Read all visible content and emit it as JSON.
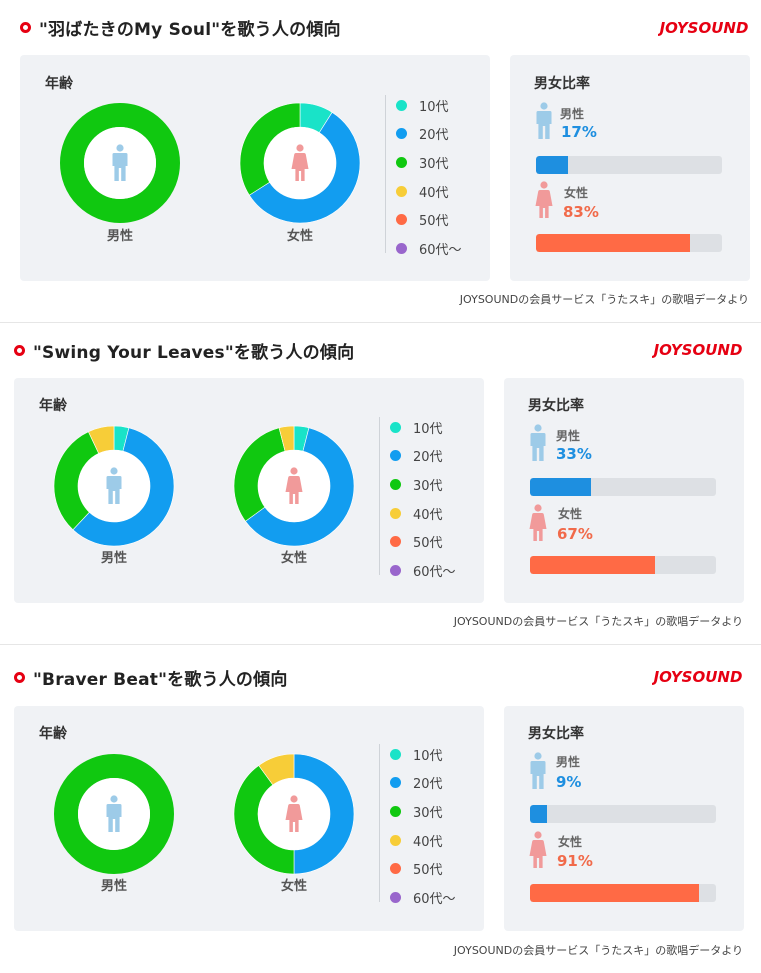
{
  "brand": "JOYSOUND",
  "footer_note": "JOYSOUNDの会員サービス「うたスキ」の歌唱データより",
  "labels": {
    "age": "年齢",
    "ratio": "男女比率",
    "male": "男性",
    "female": "女性"
  },
  "colors": {
    "10s": "#19e3c8",
    "20s": "#129df0",
    "30s": "#10c810",
    "40s": "#f7cd38",
    "50s": "#ff6a45",
    "60s": "#9966cc",
    "male_icon": "#9dcbe8",
    "female_icon": "#f19a9a",
    "male_pct": "#1e8fe0",
    "female_pct": "#f16a4a",
    "bar_bg": "#dde0e4"
  },
  "legend": [
    "10代",
    "20代",
    "30代",
    "40代",
    "50代",
    "60代〜"
  ],
  "sections": [
    {
      "title": "\"羽ばたきのMy Soul\"を歌う人の傾向",
      "male_age": [
        0,
        0,
        100,
        0,
        0,
        0
      ],
      "female_age": [
        9,
        57,
        34,
        0,
        0,
        0
      ],
      "male_pct": "17%",
      "female_pct": "83%",
      "male_ratio": 17,
      "female_ratio": 83
    },
    {
      "title": "\"Swing Your Leaves\"を歌う人の傾向",
      "male_age": [
        4,
        58,
        31,
        7,
        0,
        0
      ],
      "female_age": [
        4,
        61,
        31,
        4,
        0,
        0
      ],
      "male_pct": "33%",
      "female_pct": "67%",
      "male_ratio": 33,
      "female_ratio": 67
    },
    {
      "title": "\"Braver Beat\"を歌う人の傾向",
      "male_age": [
        0,
        0,
        100,
        0,
        0,
        0
      ],
      "female_age": [
        0,
        50,
        40,
        10,
        0,
        0
      ],
      "male_pct": "9%",
      "female_pct": "91%",
      "male_ratio": 9,
      "female_ratio": 91
    }
  ]
}
